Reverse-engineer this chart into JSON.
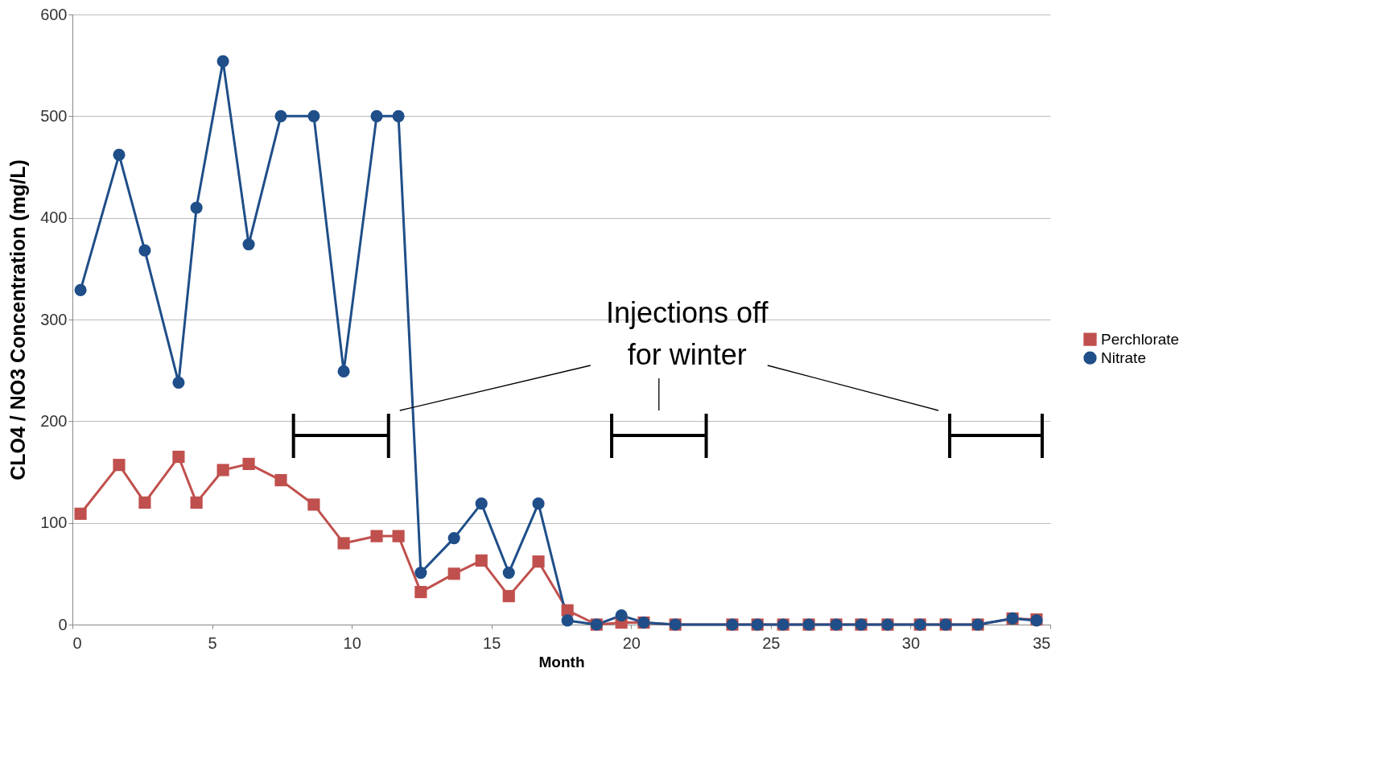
{
  "chart_data": {
    "type": "line",
    "xlabel": "Month",
    "ylabel": "CLO4 / NO3 Concentration (mg/L)",
    "xlim": [
      0,
      35
    ],
    "xticks": [
      0,
      5,
      10,
      15,
      20,
      25,
      30,
      35
    ],
    "ylim": [
      0,
      600
    ],
    "yticks": [
      0,
      100,
      200,
      300,
      400,
      500,
      600
    ],
    "grid": "y",
    "legend": "right",
    "line_style": "solid",
    "annotations": [
      "Injections off\nfor winter"
    ],
    "series": [
      {
        "name": "Perchlorate",
        "color": "#c0504d",
        "marker": "square",
        "x": [
          0.29,
          1.67,
          2.59,
          3.8,
          4.44,
          5.39,
          6.31,
          7.46,
          8.64,
          9.71,
          10.89,
          11.67,
          12.47,
          13.66,
          14.64,
          15.62,
          16.68,
          17.72,
          18.76,
          19.65,
          20.45,
          21.58,
          23.62,
          24.52,
          25.44,
          26.36,
          27.34,
          28.23,
          29.18,
          30.34,
          31.26,
          32.41,
          33.65,
          34.51
        ],
        "values": [
          109,
          157,
          120,
          165,
          120,
          152,
          158,
          142,
          118,
          80,
          87,
          87,
          32,
          50,
          63,
          28,
          62,
          14,
          0,
          2,
          2,
          0,
          0,
          0,
          0,
          0,
          0,
          0,
          0,
          0,
          0,
          0,
          6,
          5
        ]
      },
      {
        "name": "Nitrate",
        "color": "#1f4e89",
        "marker": "circle",
        "x": [
          0.29,
          1.67,
          2.59,
          3.8,
          4.44,
          5.39,
          6.31,
          7.46,
          8.64,
          9.71,
          10.89,
          11.67,
          12.47,
          13.66,
          14.64,
          15.62,
          16.68,
          17.72,
          18.76,
          19.65,
          20.45,
          21.58,
          23.62,
          24.52,
          25.44,
          26.36,
          27.34,
          28.23,
          29.18,
          30.34,
          31.26,
          32.41,
          33.65,
          34.51
        ],
        "values": [
          329,
          462,
          368,
          238,
          410,
          554,
          374,
          500,
          500,
          249,
          500,
          500,
          51,
          85,
          119,
          51,
          119,
          4,
          0,
          9,
          2,
          0,
          0,
          0,
          0,
          0,
          0,
          0,
          0,
          0,
          0,
          0,
          6,
          4
        ]
      }
    ]
  }
}
